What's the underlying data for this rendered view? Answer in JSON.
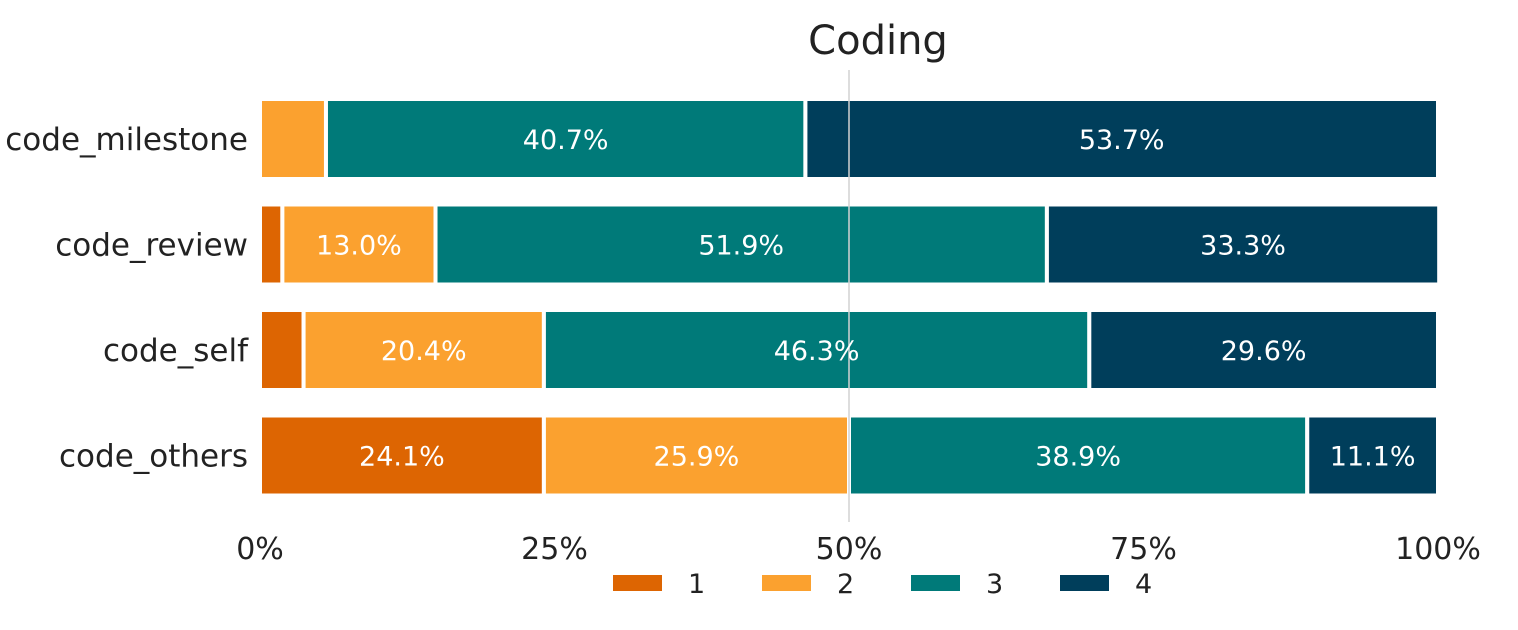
{
  "chart_data": {
    "type": "bar",
    "orientation": "horizontal",
    "stacked": "percent",
    "title": "Coding",
    "xlabel": "",
    "ylabel": "",
    "xlim": [
      0,
      100
    ],
    "x_ticks": [
      "0%",
      "25%",
      "50%",
      "75%",
      "100%"
    ],
    "x_tick_values": [
      0,
      25,
      50,
      75,
      100
    ],
    "reference_line": 50,
    "grid": false,
    "legend_position": "bottom",
    "categories": [
      "code_milestone",
      "code_review",
      "code_self",
      "code_others"
    ],
    "series": [
      {
        "name": "1",
        "color": "#DD6502",
        "values": [
          0.0,
          1.9,
          3.7,
          24.1
        ],
        "labels": [
          "",
          "",
          "",
          "24.1%"
        ]
      },
      {
        "name": "2",
        "color": "#FBA12F",
        "values": [
          5.6,
          13.0,
          20.4,
          25.9
        ],
        "labels": [
          "",
          "13.0%",
          "20.4%",
          "25.9%"
        ]
      },
      {
        "name": "3",
        "color": "#007A79",
        "values": [
          40.7,
          51.9,
          46.3,
          38.9
        ],
        "labels": [
          "40.7%",
          "51.9%",
          "46.3%",
          "38.9%"
        ]
      },
      {
        "name": "4",
        "color": "#003E5B",
        "values": [
          53.7,
          33.3,
          29.6,
          11.1
        ],
        "labels": [
          "53.7%",
          "33.3%",
          "29.6%",
          "11.1%"
        ]
      }
    ]
  }
}
